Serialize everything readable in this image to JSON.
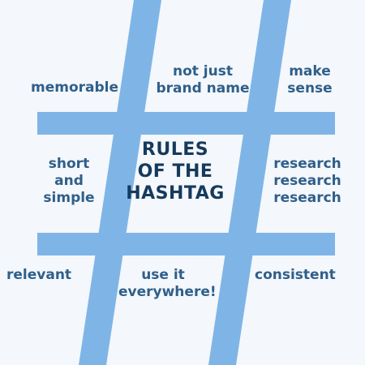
{
  "title": {
    "line1": "RULES",
    "line2": "OF THE",
    "line3": "HASHTAG"
  },
  "rules": {
    "memorable": "memorable",
    "not_just_brand_name": [
      "not just",
      "brand name"
    ],
    "make_sense": [
      "make",
      "sense"
    ],
    "short_and_simple": [
      "short",
      "and",
      "simple"
    ],
    "research": [
      "research",
      "research",
      "research"
    ],
    "relevant": "relevant",
    "use_it_everywhere": [
      "use it",
      "everywhere!"
    ],
    "consistent": "consistent"
  },
  "colors": {
    "background": "#f4f7fb",
    "hash_fill": "#7fb5e6",
    "rule_text": "#2f5f8a",
    "title_text": "#163a5c"
  }
}
